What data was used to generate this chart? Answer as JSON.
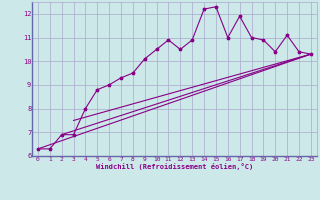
{
  "title": "",
  "xlabel": "Windchill (Refroidissement éolien,°C)",
  "ylabel": "",
  "bg_color": "#cce8e8",
  "grid_color": "#aaaacc",
  "line_color": "#880088",
  "spine_color": "#6666aa",
  "xlim": [
    -0.5,
    23.5
  ],
  "ylim": [
    6.0,
    12.5
  ],
  "yticks": [
    6,
    7,
    8,
    9,
    10,
    11,
    12
  ],
  "xticks": [
    0,
    1,
    2,
    3,
    4,
    5,
    6,
    7,
    8,
    9,
    10,
    11,
    12,
    13,
    14,
    15,
    16,
    17,
    18,
    19,
    20,
    21,
    22,
    23
  ],
  "curve1_x": [
    0,
    1,
    2,
    3,
    4,
    5,
    6,
    7,
    8,
    9,
    10,
    11,
    12,
    13,
    14,
    15,
    16,
    17,
    18,
    19,
    20,
    21,
    22,
    23
  ],
  "curve1_y": [
    6.3,
    6.3,
    6.9,
    6.9,
    8.0,
    8.8,
    9.0,
    9.3,
    9.5,
    10.1,
    10.5,
    10.9,
    10.5,
    10.9,
    12.2,
    12.3,
    11.0,
    11.9,
    11.0,
    10.9,
    10.4,
    11.1,
    10.4,
    10.3
  ],
  "line2_x": [
    0,
    23
  ],
  "line2_y": [
    6.3,
    10.3
  ],
  "line3_x": [
    2,
    23
  ],
  "line3_y": [
    6.9,
    10.3
  ],
  "line4_x": [
    3,
    23
  ],
  "line4_y": [
    7.5,
    10.3
  ]
}
